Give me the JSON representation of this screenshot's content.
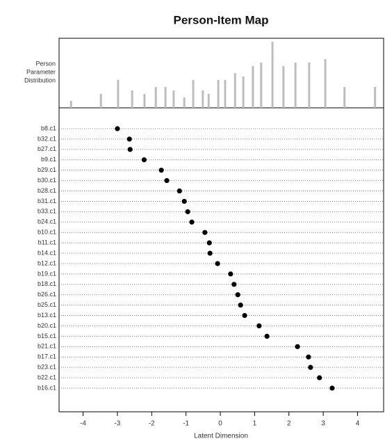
{
  "chart_data": {
    "type": "person-item-map",
    "title": "Person-Item Map",
    "histogram_label": [
      "Person",
      "Parameter",
      "Distribution"
    ],
    "xlabel": "Latent Dimension",
    "xlim": [
      -4.7,
      4.76
    ],
    "xticks": [
      -4,
      -3,
      -2,
      -1,
      0,
      1,
      2,
      3,
      4
    ],
    "histogram": {
      "color": "#bdbdbd",
      "ylim": [
        0,
        20
      ],
      "x": [
        -4.35,
        -3.48,
        -2.98,
        -2.57,
        -2.21,
        -1.88,
        -1.6,
        -1.36,
        -1.05,
        -0.79,
        -0.51,
        -0.34,
        -0.06,
        0.14,
        0.43,
        0.67,
        0.95,
        1.19,
        1.52,
        1.84,
        2.19,
        2.59,
        3.06,
        3.62,
        4.51
      ],
      "values": [
        2,
        4,
        8,
        5,
        4,
        6,
        6,
        5,
        3,
        8,
        5,
        4,
        8,
        8,
        10,
        9,
        12,
        13,
        19,
        12,
        13,
        13,
        14,
        6,
        6
      ]
    },
    "items": {
      "color": "#000000",
      "categories": [
        "b8.c1",
        "b32.c1",
        "b27.c1",
        "b9.c1",
        "b29.c1",
        "b30.c1",
        "b28.c1",
        "b31.c1",
        "b33.c1",
        "b24.c1",
        "b10.c1",
        "b11.c1",
        "b14.c1",
        "b12.c1",
        "b19.c1",
        "b18.c1",
        "b26.c1",
        "b25.c1",
        "b13.c1",
        "b20.c1",
        "b15.c1",
        "b21.c1",
        "b17.c1",
        "b23.c1",
        "b22.c1",
        "b16.c1"
      ],
      "values": [
        -3.0,
        -2.65,
        -2.63,
        -2.22,
        -1.72,
        -1.56,
        -1.19,
        -1.05,
        -0.95,
        -0.83,
        -0.45,
        -0.32,
        -0.3,
        -0.08,
        0.3,
        0.4,
        0.51,
        0.59,
        0.71,
        1.13,
        1.36,
        2.25,
        2.57,
        2.63,
        2.89,
        3.26
      ]
    }
  }
}
